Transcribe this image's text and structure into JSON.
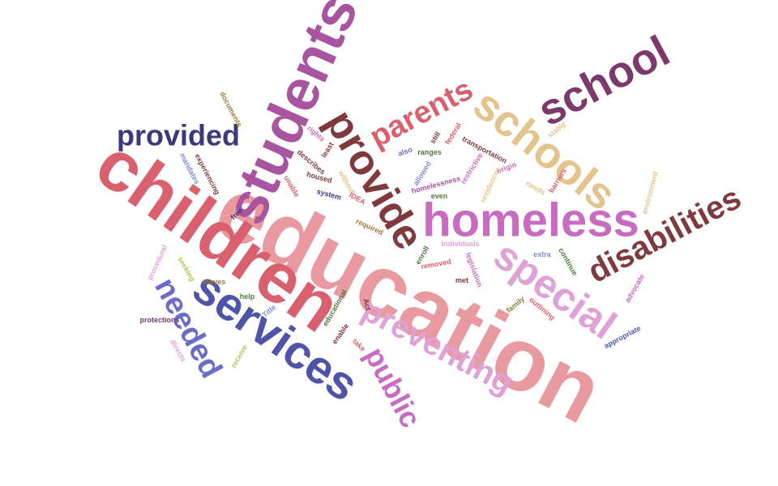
{
  "words": [
    {
      "text": "education",
      "color": "#e89aa0"
    },
    {
      "text": "children",
      "color": "#d9606e"
    },
    {
      "text": "students",
      "color": "#a8549e"
    },
    {
      "text": "services",
      "color": "#4e55a8"
    },
    {
      "text": "homeless",
      "color": "#c76cc0"
    },
    {
      "text": "special",
      "color": "#dfa2d6"
    },
    {
      "text": "provide",
      "color": "#7f3a3d"
    },
    {
      "text": "schools",
      "color": "#e3c48c"
    },
    {
      "text": "school",
      "color": "#7c3a6c"
    },
    {
      "text": "disabilities",
      "color": "#7f3a3d"
    },
    {
      "text": "preventing",
      "color": "#dfa2d6"
    },
    {
      "text": "provided",
      "color": "#3a3a78"
    },
    {
      "text": "parents",
      "color": "#d9606e"
    },
    {
      "text": "needed",
      "color": "#6b6bc8"
    },
    {
      "text": "public",
      "color": "#c76cc0"
    },
    {
      "text": "documents",
      "color": "#9a7a3a"
    },
    {
      "text": "rights",
      "color": "#c76cc0"
    },
    {
      "text": "least",
      "color": "#7f3a3d"
    },
    {
      "text": "also",
      "color": "#6b6bc8"
    },
    {
      "text": "still",
      "color": "#7f3a3d"
    },
    {
      "text": "federal",
      "color": "#d9606e"
    },
    {
      "text": "transportation",
      "color": "#7f3a3d"
    },
    {
      "text": "stably",
      "color": "#e3c48c"
    },
    {
      "text": "mandates",
      "color": "#7f8bd0"
    },
    {
      "text": "experiencing",
      "color": "#7f3a3d"
    },
    {
      "text": "describes",
      "color": "#7f3a3d"
    },
    {
      "text": "unable",
      "color": "#d9606e"
    },
    {
      "text": "housed",
      "color": "#7f3a3d"
    },
    {
      "text": "system",
      "color": "#3a3a78"
    },
    {
      "text": "without",
      "color": "#e3c48c"
    },
    {
      "text": "IDEA",
      "color": "#d9606e"
    },
    {
      "text": "ranges",
      "color": "#4e7a3a"
    },
    {
      "text": "allowed",
      "color": "#7f8bd0"
    },
    {
      "text": "homelessness",
      "color": "#a8549e"
    },
    {
      "text": "restrictive",
      "color": "#c76cc0"
    },
    {
      "text": "origin",
      "color": "#c76cc0"
    },
    {
      "text": "barriers",
      "color": "#d9606e"
    },
    {
      "text": "residences",
      "color": "#e3c48c"
    },
    {
      "text": "needs",
      "color": "#e3c48c"
    },
    {
      "text": "environment",
      "color": "#e3c48c"
    },
    {
      "text": "even",
      "color": "#4e7a3a"
    },
    {
      "text": "free",
      "color": "#3a3a78"
    },
    {
      "text": "required",
      "color": "#9a7a3a"
    },
    {
      "text": "Individuals",
      "color": "#dfa2d6"
    },
    {
      "text": "procedural",
      "color": "#dfa2d6"
    },
    {
      "text": "seeking",
      "color": "#b0c85a"
    },
    {
      "text": "enroll",
      "color": "#4e7a3a"
    },
    {
      "text": "removed",
      "color": "#d9606e"
    },
    {
      "text": "legislation",
      "color": "#c76cc0"
    },
    {
      "text": "extra",
      "color": "#7f8bd0"
    },
    {
      "text": "continue",
      "color": "#4e7a3a"
    },
    {
      "text": "advocate",
      "color": "#c76cc0"
    },
    {
      "text": "moves",
      "color": "#9a7a3a"
    },
    {
      "text": "met",
      "color": "#7f3a3d"
    },
    {
      "text": "help",
      "color": "#4e7a3a"
    },
    {
      "text": "Title",
      "color": "#7f8bd0"
    },
    {
      "text": "educational",
      "color": "#4e7a3a"
    },
    {
      "text": "Act",
      "color": "#7f3a3d"
    },
    {
      "text": "family",
      "color": "#9a7a3a"
    },
    {
      "text": "outlining",
      "color": "#d9606e"
    },
    {
      "text": "protections",
      "color": "#7c3a6c"
    },
    {
      "text": "enable",
      "color": "#7f3a3d"
    },
    {
      "text": "take",
      "color": "#d9606e"
    },
    {
      "text": "appropriate",
      "color": "#4e55a8"
    },
    {
      "text": "directs",
      "color": "#dfa2d6"
    },
    {
      "text": "receive",
      "color": "#b0c85a"
    }
  ]
}
